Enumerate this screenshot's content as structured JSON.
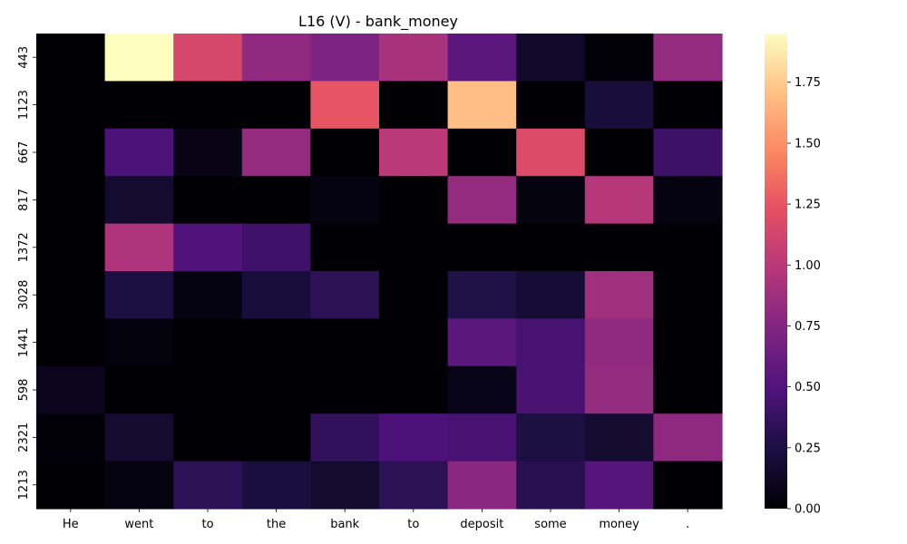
{
  "chart_data": {
    "type": "heatmap",
    "title": "L16 (V) - bank_money",
    "xlabel": "",
    "ylabel": "",
    "x_categories": [
      "He",
      "went",
      "to",
      "the",
      "bank",
      "to",
      "deposit",
      "some",
      "money",
      "."
    ],
    "y_categories": [
      "443",
      "1123",
      "667",
      "817",
      "1372",
      "3028",
      "1441",
      "598",
      "2321",
      "1213"
    ],
    "values": [
      [
        0.0,
        1.95,
        1.15,
        0.8,
        0.72,
        0.92,
        0.55,
        0.15,
        0.02,
        0.82
      ],
      [
        0.0,
        0.0,
        0.0,
        0.0,
        1.25,
        0.0,
        1.7,
        0.0,
        0.22,
        0.0
      ],
      [
        0.0,
        0.48,
        0.07,
        0.82,
        0.0,
        1.0,
        0.0,
        1.18,
        0.0,
        0.4
      ],
      [
        0.0,
        0.18,
        0.0,
        0.0,
        0.05,
        0.0,
        0.82,
        0.04,
        0.98,
        0.05
      ],
      [
        0.0,
        0.95,
        0.5,
        0.42,
        0.0,
        0.0,
        0.0,
        0.0,
        0.0,
        0.0
      ],
      [
        0.0,
        0.24,
        0.05,
        0.22,
        0.33,
        0.0,
        0.27,
        0.2,
        0.88,
        0.0
      ],
      [
        0.0,
        0.03,
        0.0,
        0.0,
        0.0,
        0.0,
        0.55,
        0.45,
        0.8,
        0.0
      ],
      [
        0.1,
        0.0,
        0.0,
        0.0,
        0.0,
        0.0,
        0.08,
        0.45,
        0.82,
        0.0
      ],
      [
        0.02,
        0.18,
        0.0,
        0.0,
        0.35,
        0.48,
        0.45,
        0.25,
        0.18,
        0.8
      ],
      [
        0.0,
        0.05,
        0.33,
        0.23,
        0.18,
        0.33,
        0.78,
        0.3,
        0.53,
        0.0
      ]
    ],
    "colormap": "magma",
    "vmin": 0.0,
    "vmax": 1.95,
    "colorbar_ticks": [
      "0.00",
      "0.25",
      "0.50",
      "0.75",
      "1.00",
      "1.25",
      "1.50",
      "1.75"
    ],
    "colorbar_tick_values": [
      0.0,
      0.25,
      0.5,
      0.75,
      1.0,
      1.25,
      1.5,
      1.75
    ]
  }
}
